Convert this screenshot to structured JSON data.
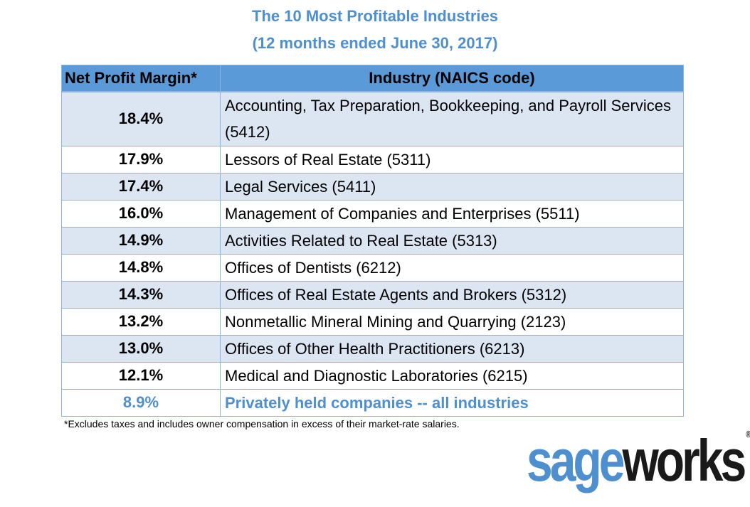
{
  "title_line1": "The 10 Most Profitable Industries",
  "title_line2": "(12 months ended June 30, 2017)",
  "table": {
    "headers": {
      "margin": "Net Profit Margin*",
      "industry": "Industry (NAICS code)"
    },
    "rows": [
      {
        "margin": "18.4%",
        "industry": "Accounting, Tax Preparation, Bookkeeping, and Payroll Services (5412)"
      },
      {
        "margin": "17.9%",
        "industry": "Lessors of Real Estate (5311)"
      },
      {
        "margin": "17.4%",
        "industry": "Legal Services (5411)"
      },
      {
        "margin": "16.0%",
        "industry": "Management of Companies and Enterprises (5511)"
      },
      {
        "margin": "14.9%",
        "industry": "Activities Related to Real Estate (5313)"
      },
      {
        "margin": "14.8%",
        "industry": "Offices of Dentists (6212)"
      },
      {
        "margin": "14.3%",
        "industry": "Offices of Real Estate Agents and Brokers (5312)"
      },
      {
        "margin": "13.2%",
        "industry": "Nonmetallic Mineral Mining and Quarrying (2123)"
      },
      {
        "margin": "13.0%",
        "industry": "Offices of Other Health Practitioners (6213)"
      },
      {
        "margin": "12.1%",
        "industry": "Medical and Diagnostic Laboratories (6215)"
      }
    ],
    "total": {
      "margin": "8.9%",
      "industry": "Privately held companies -- all industries"
    }
  },
  "footnote": "*Excludes taxes and includes owner compensation in excess of their market-rate salaries.",
  "logo": {
    "part1": "sage",
    "part2": "works",
    "mark": "®"
  },
  "colors": {
    "accent": "#4e8fd0",
    "header_bg": "#5a9ad8",
    "row_shade": "#dce6f2",
    "border": "#8db3e2"
  }
}
